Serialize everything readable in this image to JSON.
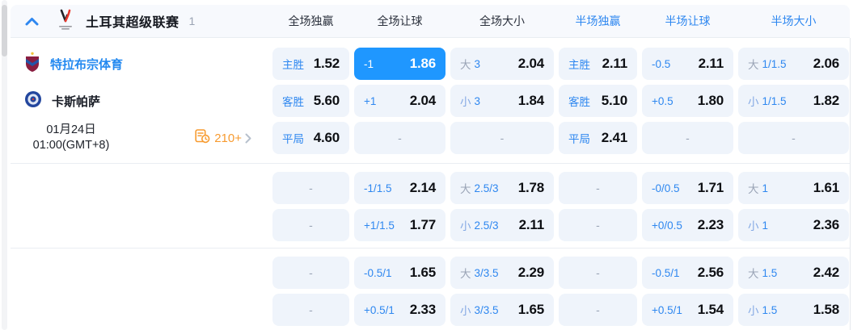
{
  "colors": {
    "selected_cell": "#1f97ff",
    "cell_bg": "#eff4fb",
    "accent_blue": "#2e87f0",
    "badge_orange": "#f79b30"
  },
  "header": {
    "league_name": "土耳其超级联赛",
    "match_count": "1",
    "columns": [
      {
        "label": "全场独赢",
        "scope": "full"
      },
      {
        "label": "全场让球",
        "scope": "full"
      },
      {
        "label": "全场大小",
        "scope": "full"
      },
      {
        "label": "半场独赢",
        "scope": "half"
      },
      {
        "label": "半场让球",
        "scope": "half"
      },
      {
        "label": "半场大小",
        "scope": "half"
      }
    ]
  },
  "match": {
    "home_team": "特拉布宗体育",
    "away_team": "卡斯帕萨",
    "date": "01月24日",
    "time": "01:00(GMT+8)",
    "markets_count": "210+"
  },
  "ui": {
    "empty_label": "-"
  },
  "odds_blocks": [
    {
      "rows": [
        [
          {
            "t": "pick",
            "label": "主胜",
            "value": "1.52"
          },
          {
            "t": "pick",
            "label": "-1",
            "value": "1.86",
            "selected": true
          },
          {
            "t": "ou",
            "side": "大",
            "line": "3",
            "value": "2.04"
          },
          {
            "t": "pick",
            "label": "主胜",
            "value": "2.11"
          },
          {
            "t": "pick",
            "label": "-0.5",
            "value": "2.11"
          },
          {
            "t": "ou",
            "side": "大",
            "line": "1/1.5",
            "value": "2.06"
          }
        ],
        [
          {
            "t": "pick",
            "label": "客胜",
            "value": "5.60"
          },
          {
            "t": "pick",
            "label": "+1",
            "value": "2.04"
          },
          {
            "t": "ou",
            "side": "小",
            "line": "3",
            "value": "1.84"
          },
          {
            "t": "pick",
            "label": "客胜",
            "value": "5.10"
          },
          {
            "t": "pick",
            "label": "+0.5",
            "value": "1.80"
          },
          {
            "t": "ou",
            "side": "小",
            "line": "1/1.5",
            "value": "1.82"
          }
        ],
        [
          {
            "t": "pick",
            "label": "平局",
            "value": "4.60"
          },
          {
            "t": "empty"
          },
          {
            "t": "empty"
          },
          {
            "t": "pick",
            "label": "平局",
            "value": "2.41"
          },
          {
            "t": "empty"
          },
          {
            "t": "empty"
          }
        ]
      ]
    },
    {
      "rows": [
        [
          {
            "t": "empty"
          },
          {
            "t": "pick",
            "label": "-1/1.5",
            "value": "2.14"
          },
          {
            "t": "ou",
            "side": "大",
            "line": "2.5/3",
            "value": "1.78"
          },
          {
            "t": "empty"
          },
          {
            "t": "pick",
            "label": "-0/0.5",
            "value": "1.71"
          },
          {
            "t": "ou",
            "side": "大",
            "line": "1",
            "value": "1.61"
          }
        ],
        [
          {
            "t": "empty"
          },
          {
            "t": "pick",
            "label": "+1/1.5",
            "value": "1.77"
          },
          {
            "t": "ou",
            "side": "小",
            "line": "2.5/3",
            "value": "2.11"
          },
          {
            "t": "empty"
          },
          {
            "t": "pick",
            "label": "+0/0.5",
            "value": "2.23"
          },
          {
            "t": "ou",
            "side": "小",
            "line": "1",
            "value": "2.36"
          }
        ]
      ]
    },
    {
      "rows": [
        [
          {
            "t": "empty"
          },
          {
            "t": "pick",
            "label": "-0.5/1",
            "value": "1.65"
          },
          {
            "t": "ou",
            "side": "大",
            "line": "3/3.5",
            "value": "2.29"
          },
          {
            "t": "empty"
          },
          {
            "t": "pick",
            "label": "-0.5/1",
            "value": "2.56"
          },
          {
            "t": "ou",
            "side": "大",
            "line": "1.5",
            "value": "2.42"
          }
        ],
        [
          {
            "t": "empty"
          },
          {
            "t": "pick",
            "label": "+0.5/1",
            "value": "2.33"
          },
          {
            "t": "ou",
            "side": "小",
            "line": "3/3.5",
            "value": "1.65"
          },
          {
            "t": "empty"
          },
          {
            "t": "pick",
            "label": "+0.5/1",
            "value": "1.54"
          },
          {
            "t": "ou",
            "side": "小",
            "line": "1.5",
            "value": "1.58"
          }
        ]
      ]
    }
  ]
}
